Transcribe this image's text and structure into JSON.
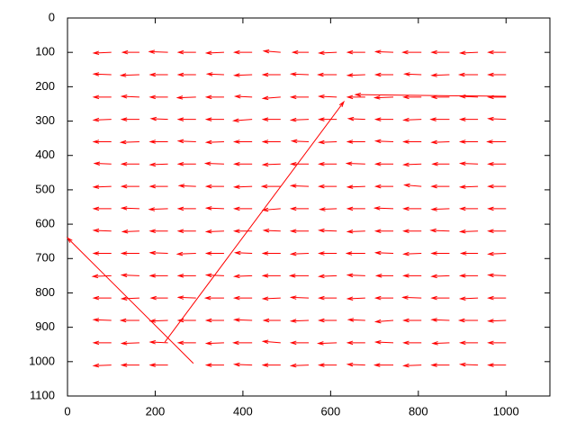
{
  "chart_data": {
    "type": "vector",
    "color": "#ff0000",
    "xlim": [
      0,
      1100
    ],
    "ylim": [
      0,
      1100
    ],
    "y_reversed": true,
    "xticks": [
      0,
      200,
      400,
      600,
      800,
      1000
    ],
    "yticks": [
      0,
      100,
      200,
      300,
      400,
      500,
      600,
      700,
      800,
      900,
      1000,
      1100
    ],
    "grid": {
      "x": [
        100,
        164,
        229,
        293,
        357,
        421,
        486,
        550,
        614,
        679,
        743,
        807,
        871,
        936,
        1000
      ],
      "y": [
        100,
        165,
        230,
        295,
        360,
        425,
        490,
        555,
        620,
        685,
        750,
        815,
        880,
        945,
        1010
      ],
      "u": [
        [
          -40,
          -38,
          -42,
          -40,
          -40,
          -40,
          -38,
          -36,
          -40,
          -40,
          -40,
          -42,
          -40,
          -40,
          -40
        ],
        [
          -40,
          -42,
          -40,
          -40,
          -38,
          -40,
          -40,
          -40,
          -42,
          -40,
          -40,
          -38,
          -40,
          -42,
          -40
        ],
        [
          -40,
          -40,
          -40,
          -42,
          -40,
          -38,
          -40,
          -40,
          -40,
          -40,
          -42,
          -40,
          -40,
          -40,
          -40
        ],
        [
          -40,
          -40,
          -38,
          -40,
          -40,
          -42,
          -40,
          -40,
          -40,
          -38,
          -40,
          -40,
          -42,
          -40,
          -40
        ],
        [
          -40,
          -42,
          -40,
          -40,
          -40,
          -40,
          -40,
          -38,
          -40,
          -40,
          -40,
          -40,
          -40,
          -40,
          -42
        ],
        [
          -38,
          -40,
          -40,
          -40,
          -42,
          -40,
          -40,
          -40,
          -40,
          -42,
          -40,
          -40,
          -38,
          -40,
          -40
        ],
        [
          -40,
          -40,
          -40,
          -38,
          -40,
          -40,
          -42,
          -40,
          -40,
          -40,
          -40,
          -38,
          -40,
          -40,
          -40
        ],
        [
          -40,
          -40,
          -42,
          -40,
          -40,
          -40,
          -40,
          -40,
          -38,
          -40,
          -42,
          -40,
          -40,
          -40,
          -40
        ],
        [
          -40,
          -38,
          -40,
          -40,
          -40,
          -40,
          -38,
          -40,
          -40,
          -40,
          -40,
          -40,
          -42,
          -40,
          -40
        ],
        [
          -40,
          -40,
          -40,
          -42,
          -40,
          -38,
          -40,
          -40,
          -40,
          -42,
          -40,
          -40,
          -40,
          -38,
          -40
        ],
        [
          -42,
          -40,
          -40,
          -40,
          -40,
          -40,
          -40,
          -42,
          -40,
          -40,
          -38,
          -40,
          -40,
          -40,
          -40
        ],
        [
          -40,
          -40,
          -38,
          -40,
          -42,
          -40,
          -40,
          -40,
          -40,
          -40,
          -40,
          -42,
          -40,
          -40,
          -40
        ],
        [
          -40,
          -42,
          -40,
          -40,
          -40,
          -40,
          -38,
          -40,
          -40,
          -38,
          -40,
          -40,
          -40,
          -42,
          -40
        ],
        [
          -40,
          -40,
          -40,
          -40,
          -40,
          -42,
          -40,
          -40,
          -42,
          -40,
          -40,
          -40,
          -38,
          -40,
          -40
        ],
        [
          -40,
          -40,
          -40,
          null,
          -40,
          -40,
          -40,
          -40,
          -40,
          -40,
          -42,
          -40,
          -40,
          -40,
          -40
        ]
      ],
      "v": [
        [
          2,
          0,
          -2,
          0,
          2,
          0,
          -4,
          0,
          2,
          0,
          -2,
          0,
          0,
          2,
          0
        ],
        [
          -2,
          2,
          0,
          0,
          -2,
          2,
          0,
          -2,
          0,
          2,
          0,
          -2,
          2,
          0,
          0
        ],
        [
          0,
          -2,
          0,
          2,
          0,
          -2,
          4,
          0,
          -2,
          0,
          2,
          0,
          0,
          -2,
          0
        ],
        [
          2,
          0,
          -2,
          0,
          0,
          4,
          0,
          2,
          0,
          -2,
          0,
          2,
          0,
          0,
          -2
        ],
        [
          0,
          2,
          0,
          -2,
          2,
          0,
          0,
          -2,
          2,
          0,
          -2,
          0,
          2,
          0,
          0
        ],
        [
          -2,
          0,
          2,
          0,
          -2,
          0,
          2,
          0,
          0,
          -2,
          0,
          2,
          0,
          -2,
          0
        ],
        [
          2,
          0,
          0,
          -2,
          0,
          2,
          0,
          -2,
          0,
          2,
          0,
          -4,
          0,
          2,
          0
        ],
        [
          0,
          -2,
          2,
          0,
          -2,
          0,
          4,
          0,
          2,
          0,
          -2,
          0,
          2,
          0,
          0
        ],
        [
          -2,
          2,
          0,
          0,
          2,
          0,
          -2,
          0,
          -2,
          2,
          0,
          0,
          -2,
          2,
          0
        ],
        [
          0,
          0,
          -2,
          2,
          0,
          -2,
          0,
          2,
          0,
          0,
          -2,
          2,
          0,
          0,
          2
        ],
        [
          2,
          -2,
          0,
          0,
          -2,
          2,
          0,
          0,
          2,
          -2,
          0,
          0,
          2,
          0,
          -2
        ],
        [
          0,
          2,
          0,
          -2,
          0,
          0,
          2,
          -2,
          0,
          2,
          0,
          -2,
          0,
          2,
          0
        ],
        [
          -2,
          0,
          2,
          0,
          0,
          -2,
          0,
          2,
          0,
          -2,
          4,
          0,
          -2,
          0,
          2
        ],
        [
          0,
          2,
          -2,
          0,
          2,
          0,
          -4,
          0,
          2,
          0,
          -2,
          0,
          2,
          0,
          0
        ],
        [
          2,
          0,
          0,
          null,
          0,
          -2,
          0,
          2,
          0,
          -2,
          0,
          2,
          0,
          -2,
          0
        ]
      ]
    },
    "long_vectors": {
      "x": [
        287,
        222,
        1000
      ],
      "y": [
        1005,
        943,
        228
      ],
      "dx": [
        -287,
        408,
        -343
      ],
      "dy": [
        -365,
        -699,
        -5
      ]
    }
  }
}
